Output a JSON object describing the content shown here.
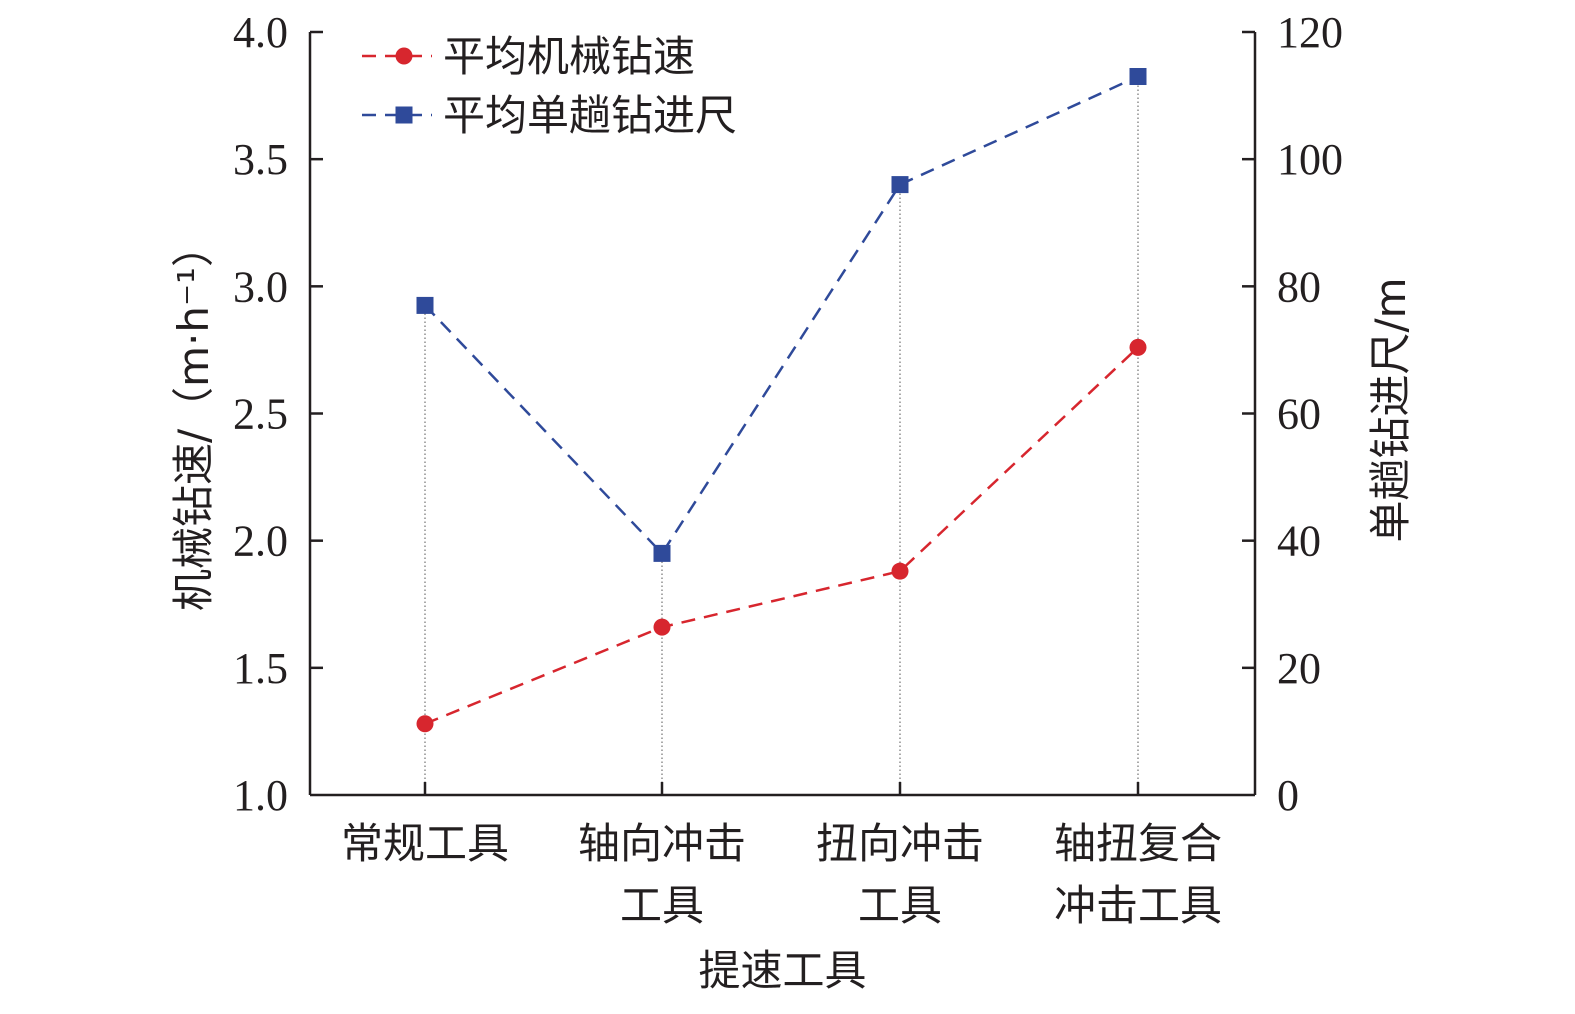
{
  "chart_data": {
    "type": "line",
    "categories": [
      [
        "常规工具"
      ],
      [
        "轴向冲击",
        "工具"
      ],
      [
        "扭向冲击",
        "工具"
      ],
      [
        "轴扭复合",
        "冲击工具"
      ]
    ],
    "xlabel": "提速工具",
    "ylabel_left": "机械钻速/（m·h⁻¹）",
    "ylabel_right": "单趟钻进尺/m",
    "ylim_left": [
      1.0,
      4.0
    ],
    "ylim_right": [
      0,
      120
    ],
    "yticks_left": [
      "1.0",
      "1.5",
      "2.0",
      "2.5",
      "3.0",
      "3.5",
      "4.0"
    ],
    "yticks_right": [
      "0",
      "20",
      "40",
      "60",
      "80",
      "100",
      "120"
    ],
    "series": [
      {
        "name": "平均机械钻速",
        "axis": "left",
        "marker": "circle",
        "color": "#d7262e",
        "values": [
          1.28,
          1.66,
          1.88,
          2.76
        ]
      },
      {
        "name": "平均单趟钻进尺",
        "axis": "right",
        "marker": "square",
        "color": "#2f4a9a",
        "values": [
          77,
          38,
          96,
          113
        ]
      }
    ],
    "legend_position": "top-left",
    "grid": false
  }
}
